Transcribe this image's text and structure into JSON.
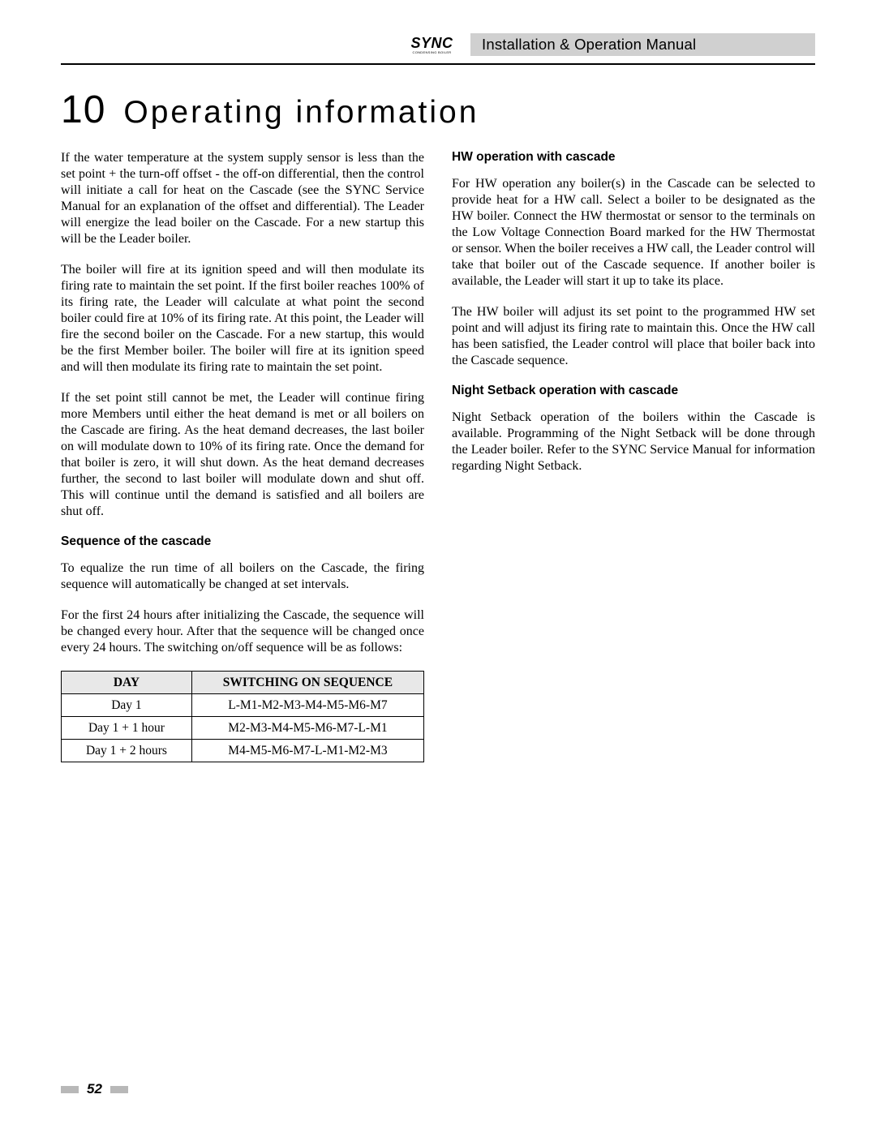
{
  "header": {
    "logo_text": "SYNC",
    "logo_sub": "CONDENSING BOILER",
    "title": "Installation & Operation Manual"
  },
  "chapter": {
    "number": "10",
    "title": "Operating information"
  },
  "left": {
    "p1": "If the water temperature at the system supply sensor is less than the set point + the turn-off offset - the off-on differential, then the control will initiate a call for heat on the Cascade (see the SYNC Service Manual for an explanation of the offset and differential). The Leader will energize the lead boiler on the Cascade. For a new startup this will be the Leader boiler.",
    "p2": "The boiler will fire at its ignition speed and will then modulate its firing rate to maintain the set point. If the first boiler reaches 100% of its firing rate, the Leader will calculate at what point the second boiler could fire at 10% of its firing rate. At this point, the Leader will fire the second boiler on the Cascade. For a new startup, this would be the first Member boiler. The boiler will fire at its ignition speed and will then modulate its firing rate to maintain the set point.",
    "p3": "If the set point still cannot be met, the Leader will continue firing more Members until either the heat demand is met or all boilers on the Cascade are firing. As the heat demand decreases, the last boiler on will modulate down to 10% of its firing rate. Once the demand for that boiler is zero, it will shut down. As the heat demand decreases further, the second to last boiler will modulate down and shut off.  This will continue until the demand is satisfied and all boilers are shut off.",
    "h1": "Sequence of the cascade",
    "p4": "To equalize the run time of all boilers on the Cascade, the firing sequence will automatically be changed at set intervals.",
    "p5": "For the first 24 hours after initializing the Cascade, the sequence will be changed every hour. After that the sequence will be changed once every 24 hours. The switching on/off sequence will be as follows:"
  },
  "table": {
    "columns": [
      "DAY",
      "SWITCHING ON SEQUENCE"
    ],
    "rows": [
      [
        "Day 1",
        "L-M1-M2-M3-M4-M5-M6-M7"
      ],
      [
        "Day 1 + 1 hour",
        "M2-M3-M4-M5-M6-M7-L-M1"
      ],
      [
        "Day 1 + 2 hours",
        "M4-M5-M6-M7-L-M1-M2-M3"
      ]
    ]
  },
  "right": {
    "h1": "HW operation with cascade",
    "p1": "For HW operation any boiler(s) in the Cascade can be selected to provide heat for a HW call. Select a boiler to be designated as the HW boiler. Connect the HW thermostat or sensor to the terminals on the Low Voltage Connection Board marked for the HW Thermostat or sensor. When the boiler receives a HW call, the Leader control will take that boiler out of the Cascade sequence. If another boiler is available, the Leader will start it up to take its place.",
    "p2": "The HW boiler will adjust its set point to the programmed HW set point and will adjust its firing rate to maintain this. Once the HW call has been satisfied, the Leader control will place that boiler back into the Cascade sequence.",
    "h2": "Night Setback operation with cascade",
    "p3": "Night Setback operation of the boilers within the Cascade is available. Programming of the Night Setback will be done through the Leader boiler. Refer to the SYNC Service Manual for information regarding Night Setback."
  },
  "footer": {
    "page": "52"
  }
}
